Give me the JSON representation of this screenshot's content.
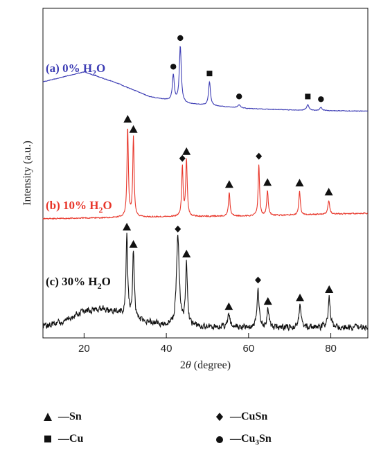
{
  "chart_data": {
    "type": "line",
    "xlabel_prefix": "2",
    "xlabel_var": "θ",
    "xlabel_suffix": " (degree)",
    "ylabel": "Intensity (a.u.)",
    "xlim": [
      10,
      89
    ],
    "x_ticks": [
      20,
      40,
      60,
      80
    ],
    "grid": false,
    "legend_position": "bottom",
    "series": [
      {
        "label_prefix": "(a) 0% H",
        "label_sub": "2",
        "label_suffix": "O",
        "color": "#3c3cb4",
        "noise": 0.6,
        "baseline": [
          [
            10,
            0.52
          ],
          [
            20,
            0.68
          ],
          [
            28,
            0.5
          ],
          [
            36,
            0.28
          ],
          [
            45,
            0.17
          ],
          [
            60,
            0.09
          ],
          [
            75,
            0.06
          ],
          [
            89,
            0.05
          ]
        ],
        "peaks": [
          {
            "x": 41.7,
            "h": 0.42,
            "w": 0.28,
            "phase": "Cu3Sn"
          },
          {
            "x": 43.4,
            "h": 0.9,
            "w": 0.28,
            "phase": "Cu3Sn"
          },
          {
            "x": 50.5,
            "h": 0.38,
            "w": 0.28,
            "phase": "Cu"
          },
          {
            "x": 57.7,
            "h": 0.05,
            "w": 0.4,
            "phase": "Cu3Sn"
          },
          {
            "x": 74.4,
            "h": 0.09,
            "w": 0.35,
            "phase": "Cu"
          },
          {
            "x": 77.6,
            "h": 0.05,
            "w": 0.35,
            "phase": "Cu3Sn"
          }
        ]
      },
      {
        "label_prefix": "(b) 10% H",
        "label_sub": "2",
        "label_suffix": "O",
        "color": "#e8362a",
        "noise": 1.2,
        "baseline": [
          [
            10,
            0.04
          ],
          [
            40,
            0.07
          ],
          [
            60,
            0.08
          ],
          [
            89,
            0.12
          ]
        ],
        "peaks": [
          {
            "x": 30.6,
            "h": 1.3,
            "w": 0.2,
            "phase": "Sn"
          },
          {
            "x": 32.0,
            "h": 1.15,
            "w": 0.2,
            "phase": "Sn"
          },
          {
            "x": 43.9,
            "h": 0.72,
            "w": 0.2,
            "phase": "CuSn"
          },
          {
            "x": 44.9,
            "h": 0.82,
            "w": 0.22,
            "phase": "Sn"
          },
          {
            "x": 55.3,
            "h": 0.34,
            "w": 0.22,
            "phase": "Sn"
          },
          {
            "x": 62.5,
            "h": 0.74,
            "w": 0.2,
            "phase": "CuSn"
          },
          {
            "x": 64.6,
            "h": 0.36,
            "w": 0.22,
            "phase": "Sn"
          },
          {
            "x": 72.4,
            "h": 0.34,
            "w": 0.22,
            "phase": "Sn"
          },
          {
            "x": 79.5,
            "h": 0.2,
            "w": 0.25,
            "phase": "Sn"
          }
        ]
      },
      {
        "label_prefix": "(c) 30% H",
        "label_sub": "2",
        "label_suffix": "O",
        "color": "#111111",
        "noise": 6,
        "baseline": [
          [
            10,
            0.05
          ],
          [
            16,
            0.14
          ],
          [
            20,
            0.24
          ],
          [
            24,
            0.28
          ],
          [
            28,
            0.22
          ],
          [
            32,
            0.14
          ],
          [
            40,
            0.07
          ],
          [
            60,
            0.04
          ],
          [
            89,
            0.05
          ]
        ],
        "peaks": [
          {
            "x": 30.4,
            "h": 1.0,
            "w": 0.25,
            "phase": "Sn"
          },
          {
            "x": 32.0,
            "h": 0.82,
            "w": 0.25,
            "phase": "Sn"
          },
          {
            "x": 42.8,
            "h": 1.08,
            "w": 0.4,
            "phase": "CuSn"
          },
          {
            "x": 44.9,
            "h": 0.78,
            "w": 0.25,
            "phase": "Sn"
          },
          {
            "x": 55.2,
            "h": 0.15,
            "w": 0.3,
            "phase": "Sn"
          },
          {
            "x": 62.3,
            "h": 0.48,
            "w": 0.3,
            "phase": "CuSn"
          },
          {
            "x": 64.7,
            "h": 0.22,
            "w": 0.3,
            "phase": "Sn"
          },
          {
            "x": 72.5,
            "h": 0.26,
            "w": 0.3,
            "phase": "Sn"
          },
          {
            "x": 79.6,
            "h": 0.36,
            "w": 0.3,
            "phase": "Sn"
          }
        ]
      }
    ]
  },
  "legend": {
    "position": "bottom",
    "items": [
      {
        "symbol": "triangle",
        "text": "—Sn",
        "sub": "",
        "suffix": ""
      },
      {
        "symbol": "diamond",
        "text": "—CuSn",
        "sub": "",
        "suffix": ""
      },
      {
        "symbol": "square",
        "text": "—Cu",
        "sub": "",
        "suffix": ""
      },
      {
        "symbol": "circle",
        "text": "—Cu",
        "sub": "3",
        "suffix": "Sn"
      }
    ]
  },
  "phase_symbols": {
    "Sn": "triangle",
    "CuSn": "diamond",
    "Cu": "square",
    "Cu3Sn": "circle"
  }
}
